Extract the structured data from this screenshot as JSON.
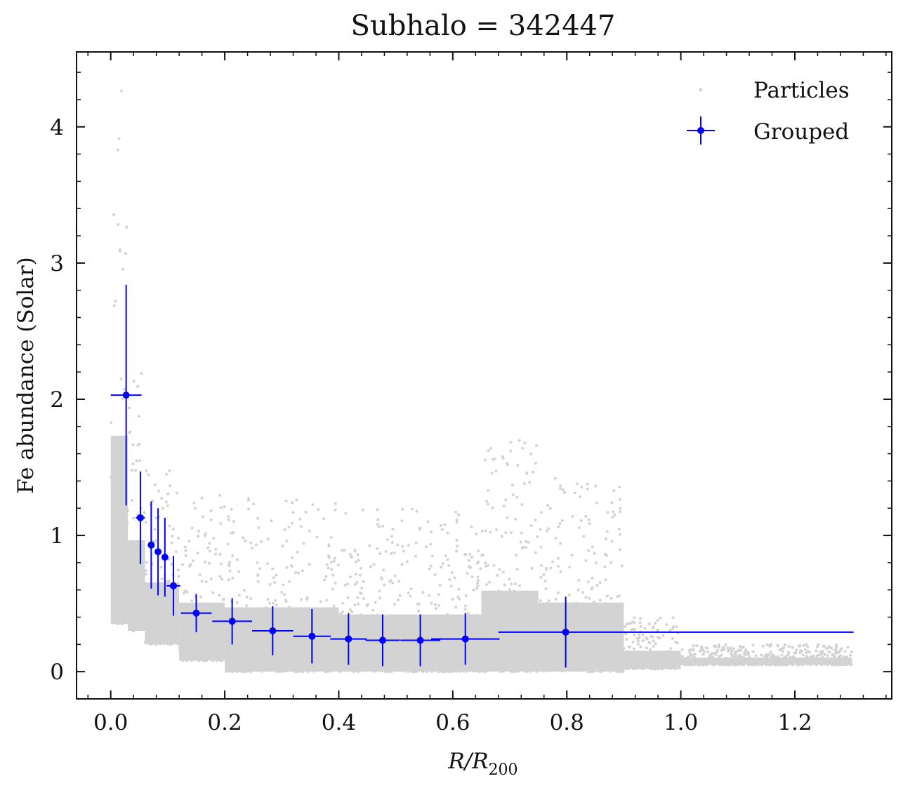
{
  "chart_data": {
    "type": "scatter",
    "title": "Subhalo = 342447",
    "xlabel": "R/R",
    "xlabel_sub": "200",
    "ylabel": "Fe abundance (Solar)",
    "xlim": [
      -0.06,
      1.37
    ],
    "ylim": [
      -0.2,
      4.55
    ],
    "x_ticks": [
      0.0,
      0.2,
      0.4,
      0.6,
      0.8,
      1.0,
      1.2
    ],
    "x_tick_labels": [
      "0.0",
      "0.2",
      "0.4",
      "0.6",
      "0.8",
      "1.0",
      "1.2"
    ],
    "y_ticks": [
      0,
      1,
      2,
      3,
      4
    ],
    "y_tick_labels": [
      "0",
      "1",
      "2",
      "3",
      "4"
    ],
    "grid": false,
    "legend_position": "top-right",
    "colors": {
      "particles": "#d3d3d3",
      "grouped": "#0000ff"
    },
    "series": [
      {
        "name": "Particles",
        "kind": "scatter",
        "envelope": [
          {
            "x0": 0.0,
            "x1": 0.03,
            "y_min": 0.35,
            "y_max": 4.3
          },
          {
            "x0": 0.03,
            "x1": 0.06,
            "y_min": 0.3,
            "y_max": 2.2
          },
          {
            "x0": 0.06,
            "x1": 0.12,
            "y_min": 0.2,
            "y_max": 1.5
          },
          {
            "x0": 0.12,
            "x1": 0.2,
            "y_min": 0.08,
            "y_max": 1.3
          },
          {
            "x0": 0.2,
            "x1": 0.4,
            "y_min": 0.0,
            "y_max": 1.35
          },
          {
            "x0": 0.4,
            "x1": 0.65,
            "y_min": 0.0,
            "y_max": 1.2
          },
          {
            "x0": 0.65,
            "x1": 0.75,
            "y_min": 0.0,
            "y_max": 1.7
          },
          {
            "x0": 0.75,
            "x1": 0.9,
            "y_min": 0.0,
            "y_max": 1.45
          },
          {
            "x0": 0.9,
            "x1": 1.0,
            "y_min": 0.02,
            "y_max": 0.4
          },
          {
            "x0": 1.0,
            "x1": 1.3,
            "y_min": 0.05,
            "y_max": 0.2
          }
        ]
      },
      {
        "name": "Grouped",
        "kind": "errorbar",
        "points": [
          {
            "x": 0.027,
            "y": 2.03,
            "xerr": 0.027,
            "yerr_lo": 0.81,
            "yerr_hi": 0.81
          },
          {
            "x": 0.052,
            "y": 1.13,
            "xerr": 0.008,
            "yerr_lo": 0.34,
            "yerr_hi": 0.34
          },
          {
            "x": 0.071,
            "y": 0.93,
            "xerr": 0.006,
            "yerr_lo": 0.32,
            "yerr_hi": 0.32
          },
          {
            "x": 0.083,
            "y": 0.88,
            "xerr": 0.006,
            "yerr_lo": 0.32,
            "yerr_hi": 0.32
          },
          {
            "x": 0.095,
            "y": 0.84,
            "xerr": 0.006,
            "yerr_lo": 0.29,
            "yerr_hi": 0.29
          },
          {
            "x": 0.11,
            "y": 0.63,
            "xerr": 0.012,
            "yerr_lo": 0.22,
            "yerr_hi": 0.22
          },
          {
            "x": 0.15,
            "y": 0.43,
            "xerr": 0.027,
            "yerr_lo": 0.14,
            "yerr_hi": 0.14
          },
          {
            "x": 0.213,
            "y": 0.37,
            "xerr": 0.035,
            "yerr_lo": 0.17,
            "yerr_hi": 0.17
          },
          {
            "x": 0.284,
            "y": 0.3,
            "xerr": 0.036,
            "yerr_lo": 0.18,
            "yerr_hi": 0.18
          },
          {
            "x": 0.353,
            "y": 0.26,
            "xerr": 0.033,
            "yerr_lo": 0.2,
            "yerr_hi": 0.2
          },
          {
            "x": 0.417,
            "y": 0.24,
            "xerr": 0.032,
            "yerr_lo": 0.19,
            "yerr_hi": 0.19
          },
          {
            "x": 0.477,
            "y": 0.23,
            "xerr": 0.03,
            "yerr_lo": 0.19,
            "yerr_hi": 0.19
          },
          {
            "x": 0.543,
            "y": 0.23,
            "xerr": 0.035,
            "yerr_lo": 0.19,
            "yerr_hi": 0.19
          },
          {
            "x": 0.622,
            "y": 0.24,
            "xerr": 0.06,
            "yerr_lo": 0.19,
            "yerr_hi": 0.19
          },
          {
            "x": 0.798,
            "y": 0.29,
            "xerr_lo": 0.118,
            "xerr_hi": 0.505,
            "yerr_lo": 0.26,
            "yerr_hi": 0.26
          }
        ]
      }
    ]
  }
}
